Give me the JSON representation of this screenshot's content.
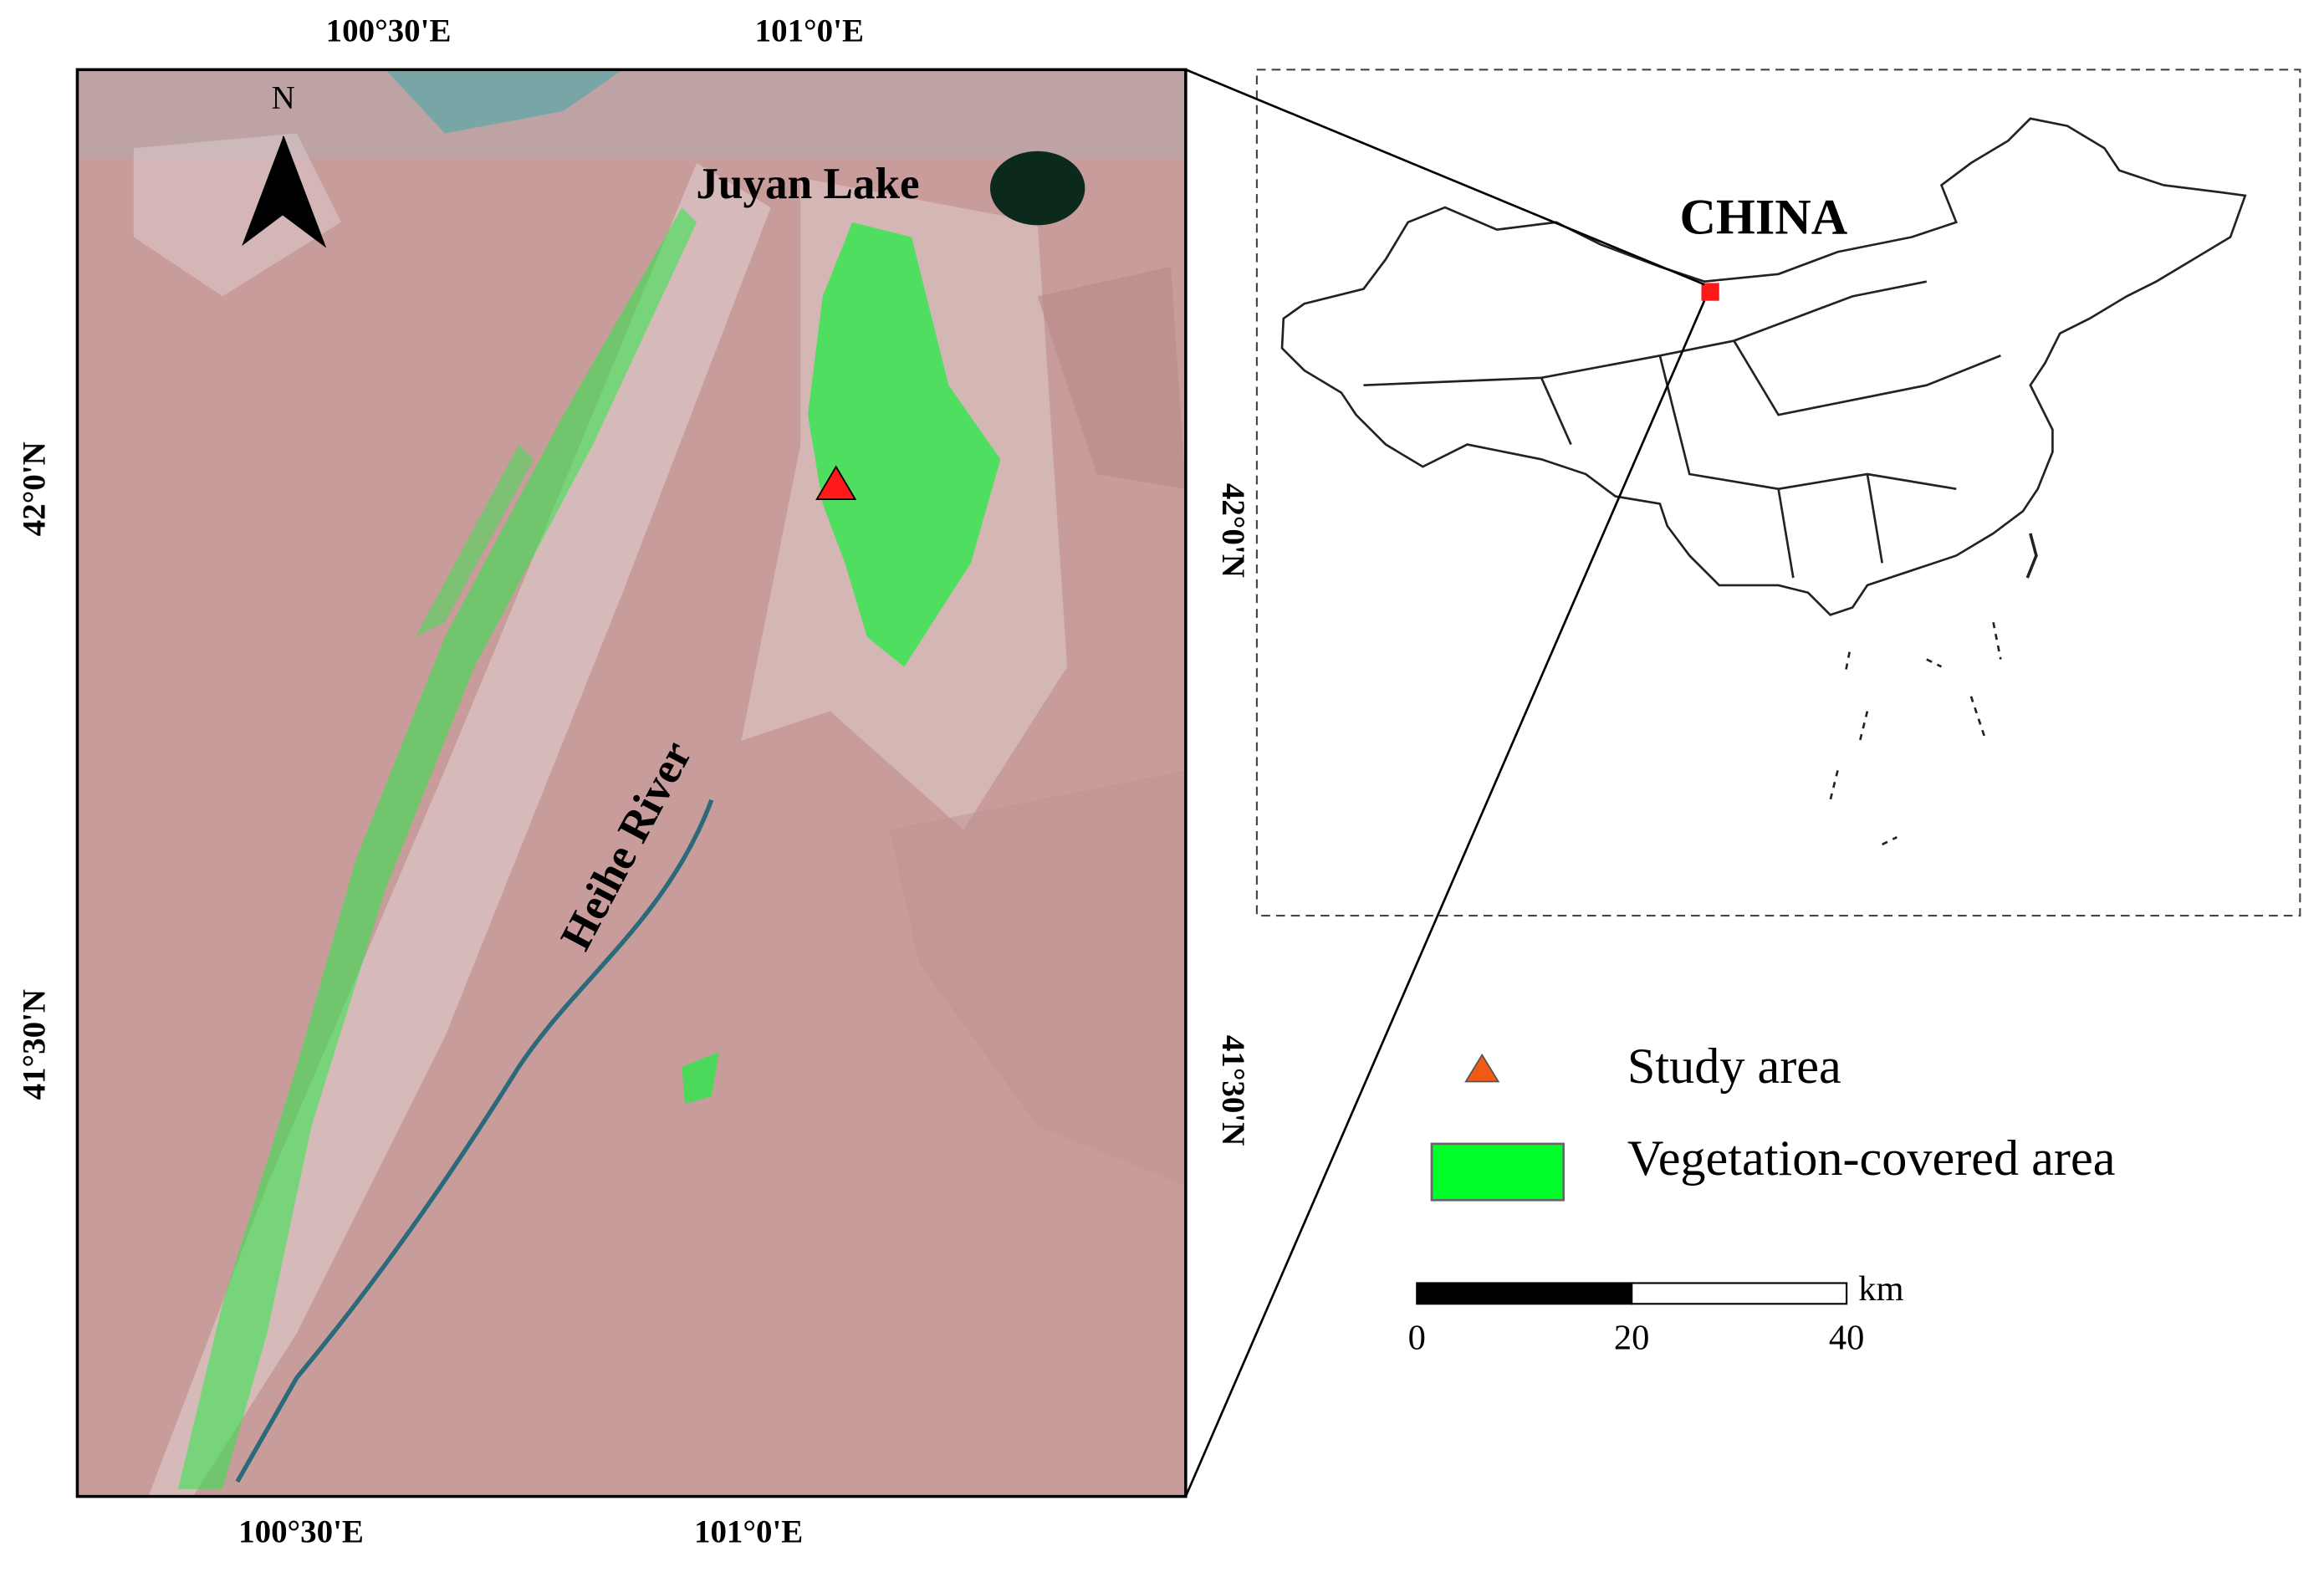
{
  "map": {
    "top_axis": [
      "100°30'E",
      "101°0'E"
    ],
    "bottom_axis": [
      "100°30'E",
      "101°0'E"
    ],
    "left_axis": [
      "42°0'N",
      "41°30'N"
    ],
    "right_axis": [
      "42°0'N",
      "41°30'N"
    ],
    "north_label": "N",
    "lake_label": "Juyan Lake",
    "river_label": "Heihe River"
  },
  "inset": {
    "country_label": "CHINA"
  },
  "legend": {
    "items": [
      {
        "label": "Study area",
        "color": "#f05a14"
      },
      {
        "label": "Vegetation-covered area",
        "color": "#00ff2a"
      }
    ]
  },
  "scale_bar": {
    "unit": "km",
    "ticks": [
      0,
      20,
      40
    ]
  }
}
